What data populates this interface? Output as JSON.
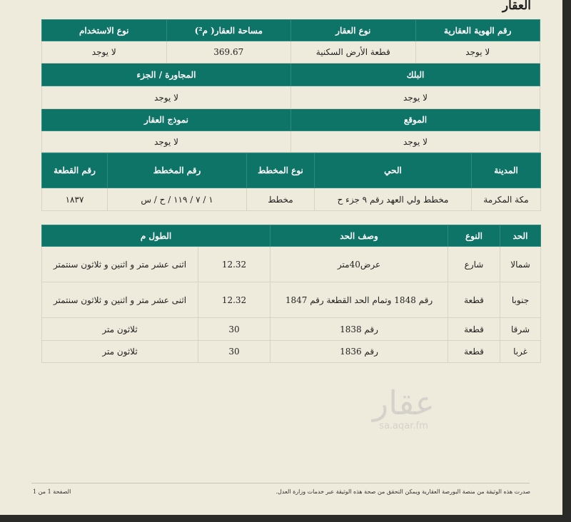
{
  "title": "العقار",
  "property": {
    "headers": [
      "رقم الهوية العقارية",
      "نوع العقار",
      "مساحة العقار( م²)",
      "نوع الاستخدام"
    ],
    "values": [
      "لا يوجد",
      "قطعة الأرض السكنية",
      "369.67",
      "لا يوجد"
    ]
  },
  "block": {
    "headers": [
      "البلك",
      "المجاورة / الجزء"
    ],
    "values": [
      "لا يوجد",
      "لا يوجد"
    ]
  },
  "location": {
    "headers": [
      "الموقع",
      "نموذج العقار"
    ],
    "values": [
      "لا يوجد",
      "لا يوجد"
    ]
  },
  "plan": {
    "headers": [
      "المدينة",
      "الحي",
      "نوع المخطط",
      "رقم المخطط",
      "رقم القطعة"
    ],
    "values": [
      "مكة المكرمة",
      "مخطط ولي العهد رقم ٩ جزء ح",
      "مخطط",
      "١ / ٧ / ١١٩ / ح / س",
      "١٨٣٧"
    ]
  },
  "borders": {
    "headers": [
      "الحد",
      "النوع",
      "وصف الحد",
      "الطول م"
    ],
    "rows": [
      [
        "شمالا",
        "شارع",
        "عرض40متر",
        "12.32",
        "اثنى عشر متر و اثنين و ثلاثون سنتمتر"
      ],
      [
        "جنوبا",
        "قطعة",
        "رقم 1848 وتمام الحد القطعة رقم 1847",
        "12.32",
        "اثنى عشر متر و اثنين و ثلاثون سنتمتر"
      ],
      [
        "شرقا",
        "قطعة",
        "رقم 1838",
        "30",
        "ثلاثون متر"
      ],
      [
        "غربا",
        "قطعة",
        "رقم 1836",
        "30",
        "ثلاثون متر"
      ]
    ]
  },
  "watermark": {
    "logo": "عقار",
    "url": "sa.aqar.fm"
  },
  "footer": {
    "note": "صدرت هذه الوثيقة من منصة البورصة العقارية ويمكن التحقق من صحة هذه الوثيقة عبر خدمات وزارة العدل.",
    "page": "الصفحة 1 من 1"
  },
  "colors": {
    "header_green": "#0e7467",
    "paper": "#efebdc"
  }
}
